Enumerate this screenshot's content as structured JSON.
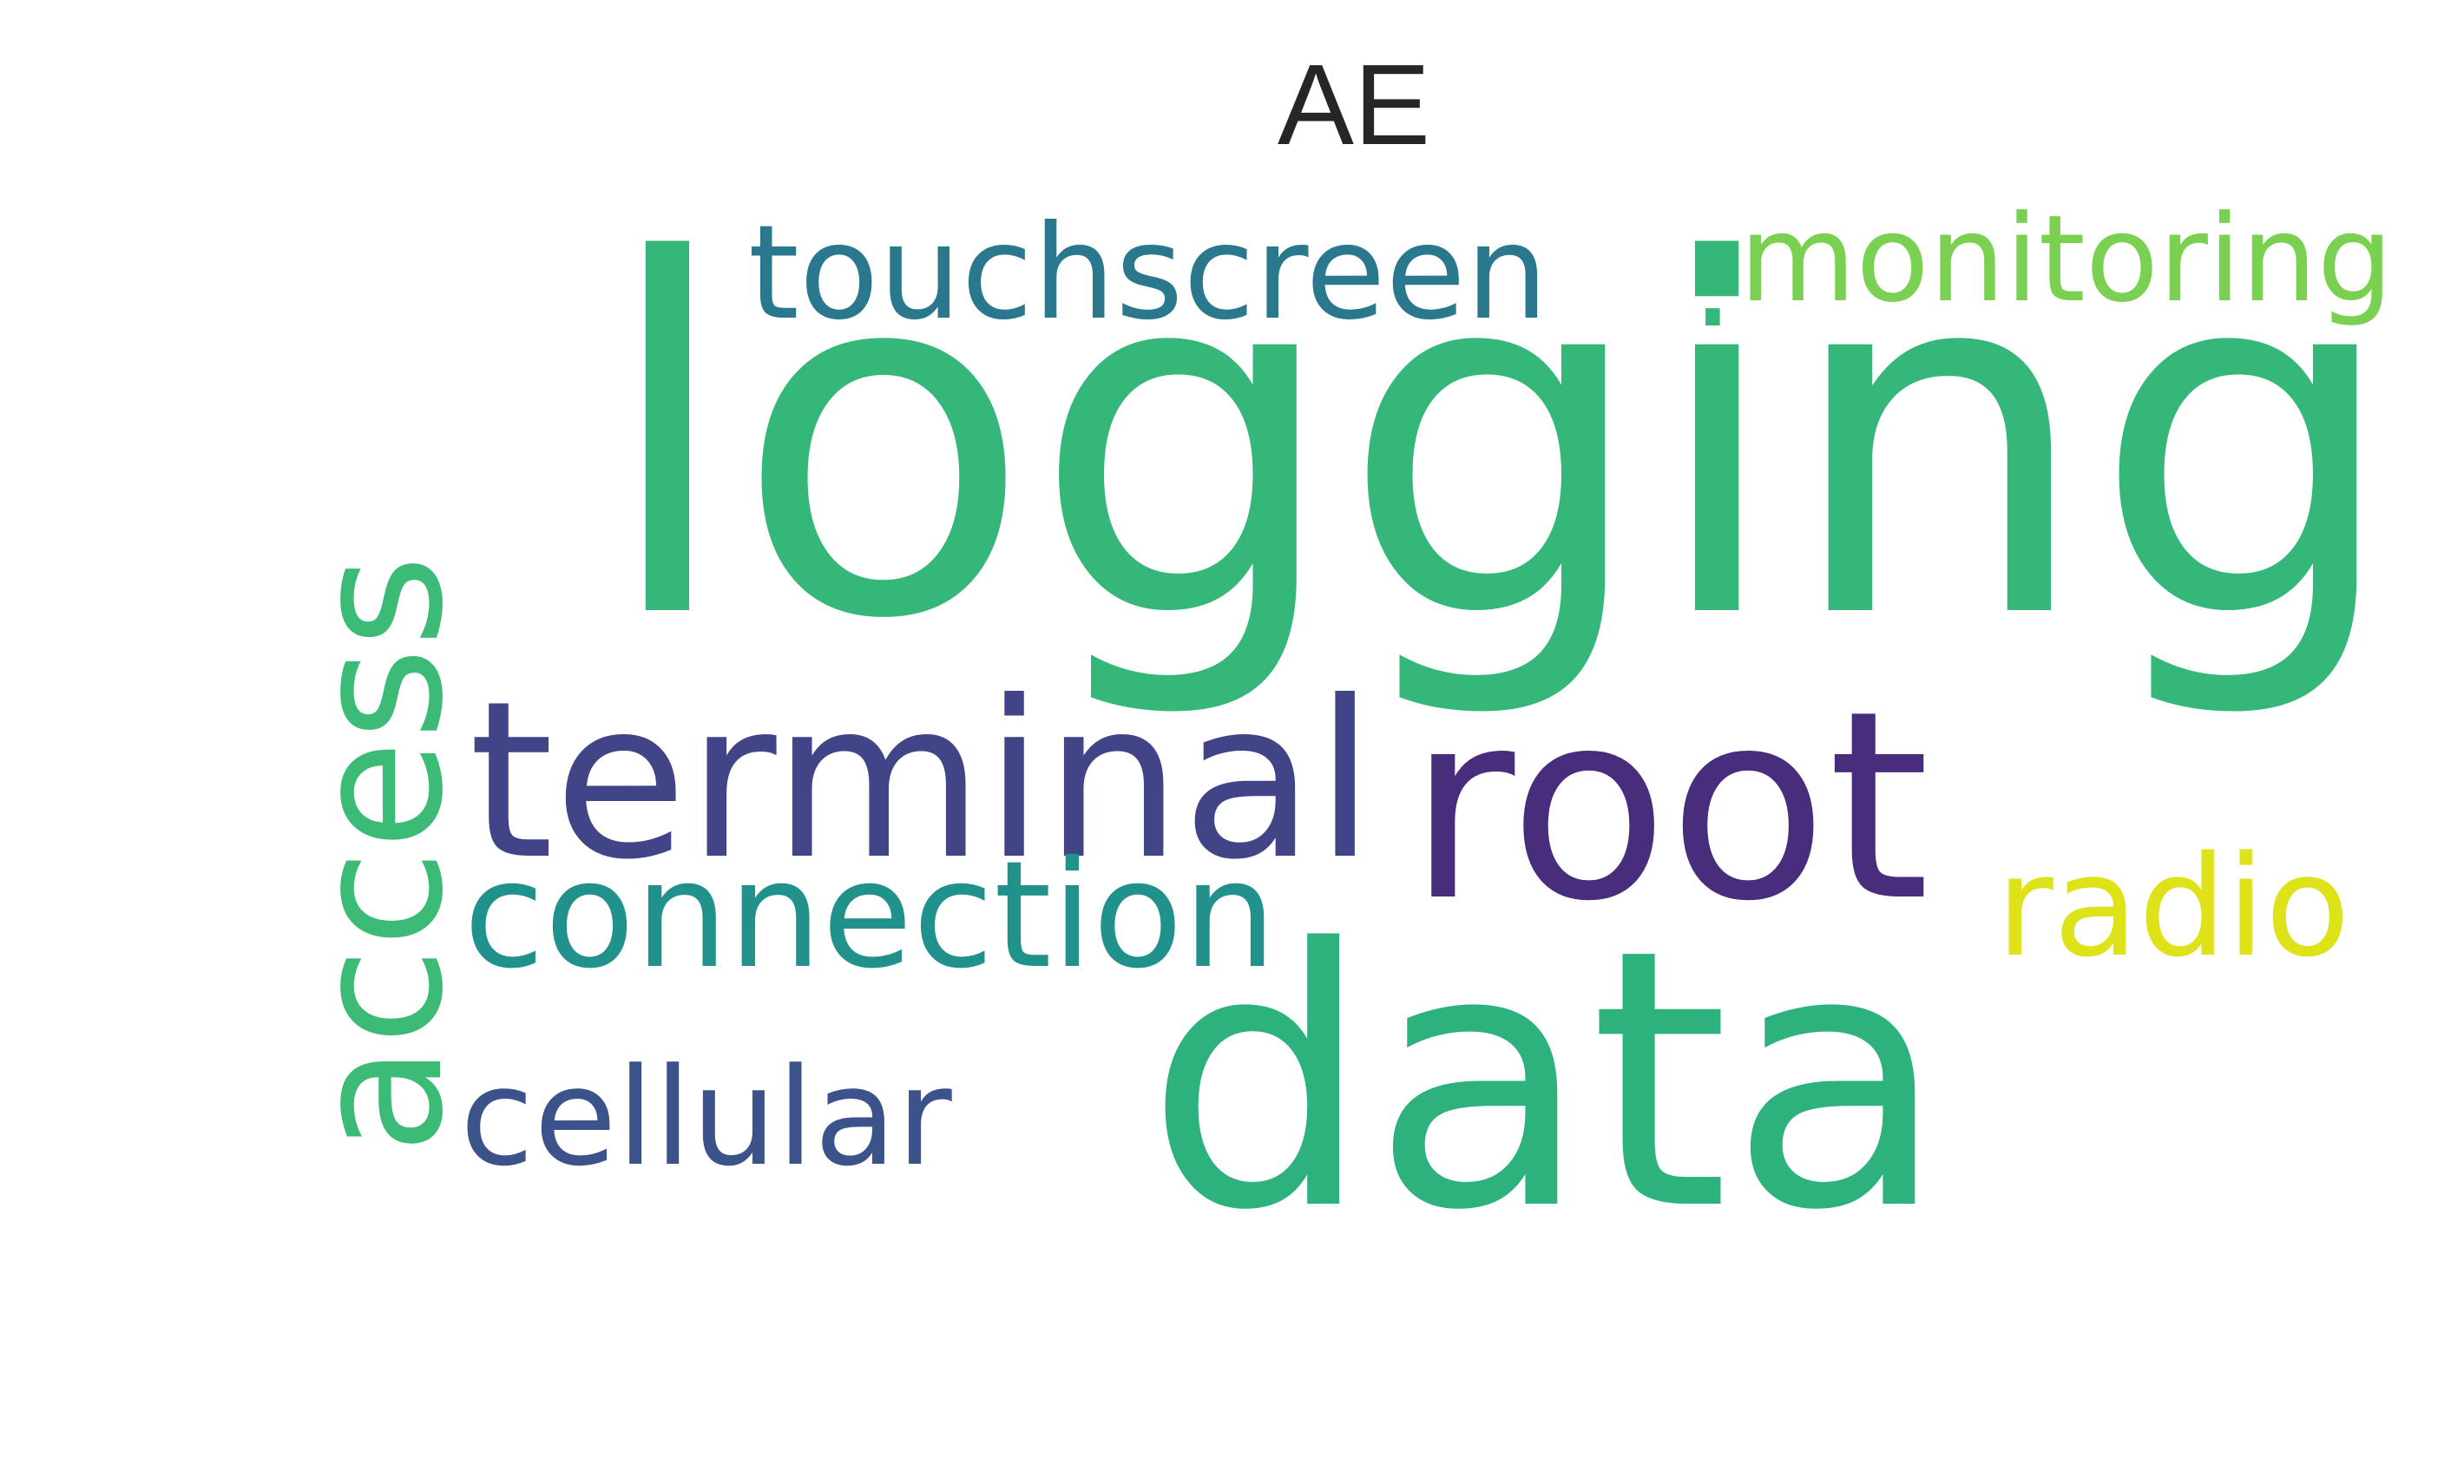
{
  "title": "AE",
  "words": [
    {
      "text": "logging",
      "color": "#35b779"
    },
    {
      "text": "touchscreen",
      "color": "#2a788e"
    },
    {
      "text": ".",
      "color": "#35b779"
    },
    {
      "text": "monitoring",
      "color": "#7ad151"
    },
    {
      "text": "terminal",
      "color": "#414487"
    },
    {
      "text": "root",
      "color": "#472d7b"
    },
    {
      "text": "connection",
      "color": "#21918c"
    },
    {
      "text": "radio",
      "color": "#dde318"
    },
    {
      "text": "data",
      "color": "#2db27d"
    },
    {
      "text": "cellular",
      "color": "#3b528b"
    },
    {
      "text": "access",
      "color": "#3bbb75"
    }
  ]
}
